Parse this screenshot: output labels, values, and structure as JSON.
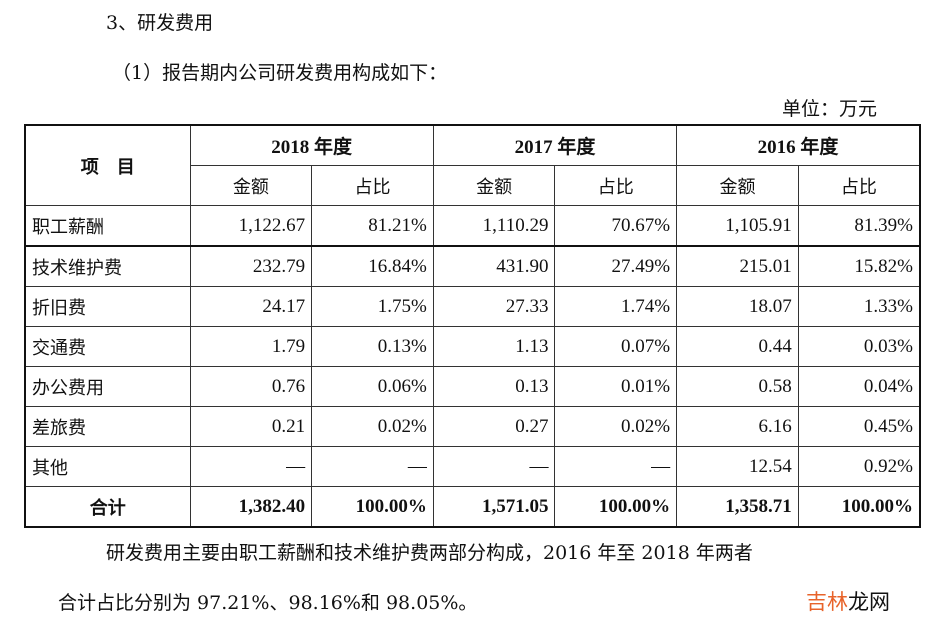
{
  "heading": "3、研发费用",
  "subheading": "（1）报告期内公司研发费用构成如下：",
  "unit": "单位：万元",
  "table": {
    "item_header": "项　目",
    "years": [
      "2018 年度",
      "2017 年度",
      "2016 年度"
    ],
    "sub_headers": [
      "金额",
      "占比"
    ],
    "rows": [
      {
        "name": "职工薪酬",
        "values": [
          "1,122.67",
          "81.21%",
          "1,110.29",
          "70.67%",
          "1,105.91",
          "81.39%"
        ]
      },
      {
        "name": "技术维护费",
        "values": [
          "232.79",
          "16.84%",
          "431.90",
          "27.49%",
          "215.01",
          "15.82%"
        ]
      },
      {
        "name": "折旧费",
        "values": [
          "24.17",
          "1.75%",
          "27.33",
          "1.74%",
          "18.07",
          "1.33%"
        ]
      },
      {
        "name": "交通费",
        "values": [
          "1.79",
          "0.13%",
          "1.13",
          "0.07%",
          "0.44",
          "0.03%"
        ]
      },
      {
        "name": "办公费用",
        "values": [
          "0.76",
          "0.06%",
          "0.13",
          "0.01%",
          "0.58",
          "0.04%"
        ]
      },
      {
        "name": "差旅费",
        "values": [
          "0.21",
          "0.02%",
          "0.27",
          "0.02%",
          "6.16",
          "0.45%"
        ]
      },
      {
        "name": "其他",
        "values": [
          "—",
          "—",
          "—",
          "—",
          "12.54",
          "0.92%"
        ]
      }
    ],
    "total": {
      "name": "合计",
      "values": [
        "1,382.40",
        "100.00%",
        "1,571.05",
        "100.00%",
        "1,358.71",
        "100.00%"
      ]
    }
  },
  "paragraph_line1": "研发费用主要由职工薪酬和技术维护费两部分构成，2016 年至 2018 年两者",
  "paragraph_line2": "合计占比分别为 97.21%、98.16%和 98.05%。",
  "watermark": {
    "part1": "吉林",
    "part2": "龙网",
    "accent_color": "#e8632a"
  }
}
